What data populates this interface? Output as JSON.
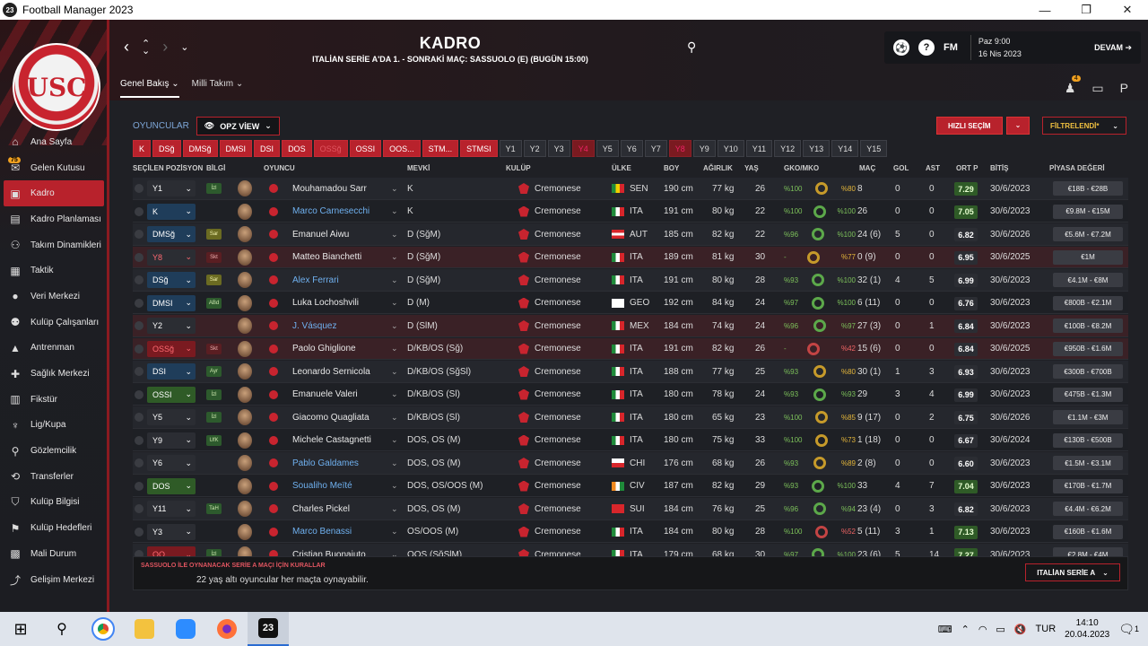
{
  "window": {
    "title": "Football Manager 2023",
    "icon": "23"
  },
  "sidebar": {
    "items": [
      {
        "label": "Ana Sayfa",
        "icon": "home-icon",
        "glyph": "⌂"
      },
      {
        "label": "Gelen Kutusu",
        "icon": "inbox-icon",
        "glyph": "✉",
        "badge": "75"
      },
      {
        "label": "Kadro",
        "icon": "squad-icon",
        "glyph": "▣",
        "active": true
      },
      {
        "label": "Kadro Planlaması",
        "icon": "planning-icon",
        "glyph": "▤"
      },
      {
        "label": "Takım Dinamikleri",
        "icon": "dynamics-icon",
        "glyph": "⚇"
      },
      {
        "label": "Taktik",
        "icon": "tactic-icon",
        "glyph": "▦"
      },
      {
        "label": "Veri Merkezi",
        "icon": "data-icon",
        "glyph": "●"
      },
      {
        "label": "Kulüp Çalışanları",
        "icon": "staff-icon",
        "glyph": "⚉"
      },
      {
        "label": "Antrenman",
        "icon": "training-icon",
        "glyph": "▲"
      },
      {
        "label": "Sağlık Merkezi",
        "icon": "medical-icon",
        "glyph": "✚"
      },
      {
        "label": "Fikstür",
        "icon": "fixture-icon",
        "glyph": "▥"
      },
      {
        "label": "Lig/Kupa",
        "icon": "trophy-icon",
        "glyph": "♆"
      },
      {
        "label": "Gözlemcilik",
        "icon": "scouting-icon",
        "glyph": "⚲"
      },
      {
        "label": "Transferler",
        "icon": "transfer-icon",
        "glyph": "⟲"
      },
      {
        "label": "Kulüp Bilgisi",
        "icon": "club-info-icon",
        "glyph": "⛉"
      },
      {
        "label": "Kulüp Hedefleri",
        "icon": "goals-icon",
        "glyph": "⚑"
      },
      {
        "label": "Mali Durum",
        "icon": "finance-icon",
        "glyph": "▩"
      },
      {
        "label": "Gelişim Merkezi",
        "icon": "development-icon",
        "glyph": "⤴"
      }
    ]
  },
  "header": {
    "title": "KADRO",
    "subtitle": "ITALİAN SERİE A'DA 1. - SONRAKİ MAÇ: SASSUOLO (E) (BUGÜN 15:00)",
    "fm": "FM",
    "time": "Paz 9:00",
    "date": "16 Nis 2023",
    "continue": "DEVAM",
    "tabs": [
      "Genel Bakış",
      "Milli Takım"
    ],
    "notif_count": "4"
  },
  "toolbar": {
    "players_label": "OYUNCULAR",
    "view_label": "OPZ VİEW",
    "quick_select": "HIZLI SEÇİM",
    "filtered": "FİLTRELENDİ*",
    "positions": [
      "K",
      "DSğ",
      "DMSğ",
      "DMSI",
      "DSI",
      "DOS",
      "OSSğ",
      "OSSI",
      "OOS...",
      "STM...",
      "STMSI",
      "Y1",
      "Y2",
      "Y3",
      "Y4",
      "Y5",
      "Y6",
      "Y7",
      "Y8",
      "Y9",
      "Y10",
      "Y11",
      "Y12",
      "Y13",
      "Y14",
      "Y15"
    ]
  },
  "table": {
    "headers": [
      "SEÇİLEN POZİSYON",
      "BİLGİ",
      "OYUNCU",
      "MEVKİ",
      "KULÜP",
      "ÜLKE",
      "BOY",
      "AĞIRLIK",
      "YAŞ",
      "GKO/MKO",
      "MAÇ",
      "GOL",
      "AST",
      "ORT P",
      "BİTİŞ",
      "PİYASA DEĞERİ"
    ],
    "rows": [
      {
        "pos": "Y1",
        "info": "İzl",
        "name": "Mouhamadou Sarr",
        "mevki": "K",
        "club": "Cremonese",
        "country": "SEN",
        "boy": "190 cm",
        "kg": "77 kg",
        "yas": "26",
        "gko": "%100",
        "mko": "%80",
        "mac": "8",
        "gol": "0",
        "ast": "0",
        "ortp": "7.29",
        "bitis": "30/6/2023",
        "piyasa": "€18B - €28B"
      },
      {
        "pos": "K",
        "info": "",
        "name": "Marco Carnesecchi",
        "mevki": "K",
        "club": "Cremonese",
        "country": "ITA",
        "boy": "191 cm",
        "kg": "80 kg",
        "yas": "22",
        "gko": "%100",
        "mko": "%100",
        "mac": "26",
        "gol": "0",
        "ast": "0",
        "ortp": "7.05",
        "bitis": "30/6/2023",
        "piyasa": "€9.8M - €15M"
      },
      {
        "pos": "DMSğ",
        "info": "Sar",
        "name": "Emanuel Aiwu",
        "mevki": "D (SğM)",
        "club": "Cremonese",
        "country": "AUT",
        "boy": "185 cm",
        "kg": "82 kg",
        "yas": "22",
        "gko": "%96",
        "mko": "%100",
        "mac": "24 (6)",
        "gol": "5",
        "ast": "0",
        "ortp": "6.82",
        "bitis": "30/6/2026",
        "piyasa": "€5.6M - €7.2M"
      },
      {
        "pos": "Y8",
        "info": "Skt",
        "name": "Matteo Bianchetti",
        "mevki": "D (SğM)",
        "club": "Cremonese",
        "country": "ITA",
        "boy": "189 cm",
        "kg": "81 kg",
        "yas": "30",
        "gko": "-",
        "mko": "%77",
        "mac": "0 (9)",
        "gol": "0",
        "ast": "0",
        "ortp": "6.95",
        "bitis": "30/6/2025",
        "piyasa": "€1M"
      },
      {
        "pos": "DSğ",
        "info": "Sar",
        "name": "Alex Ferrari",
        "mevki": "D (SğM)",
        "club": "Cremonese",
        "country": "ITA",
        "boy": "191 cm",
        "kg": "80 kg",
        "yas": "28",
        "gko": "%93",
        "mko": "%100",
        "mac": "32 (1)",
        "gol": "4",
        "ast": "5",
        "ortp": "6.99",
        "bitis": "30/6/2023",
        "piyasa": "€4.1M - €8M"
      },
      {
        "pos": "DMSI",
        "info": "ABd",
        "name": "Luka Lochoshvili",
        "mevki": "D (M)",
        "club": "Cremonese",
        "country": "GEO",
        "boy": "192 cm",
        "kg": "84 kg",
        "yas": "24",
        "gko": "%97",
        "mko": "%100",
        "mac": "6 (11)",
        "gol": "0",
        "ast": "0",
        "ortp": "6.76",
        "bitis": "30/6/2023",
        "piyasa": "€800B - €2.1M"
      },
      {
        "pos": "Y2",
        "info": "",
        "name": "J. Vásquez",
        "mevki": "D (SlM)",
        "club": "Cremonese",
        "country": "MEX",
        "boy": "184 cm",
        "kg": "74 kg",
        "yas": "24",
        "gko": "%96",
        "mko": "%97",
        "mac": "27 (3)",
        "gol": "0",
        "ast": "1",
        "ortp": "6.84",
        "bitis": "30/6/2023",
        "piyasa": "€100B - €8.2M"
      },
      {
        "pos": "OSSğ",
        "info": "Skt",
        "name": "Paolo Ghiglione",
        "mevki": "D/KB/OS (Sğ)",
        "club": "Cremonese",
        "country": "ITA",
        "boy": "191 cm",
        "kg": "82 kg",
        "yas": "26",
        "gko": "-",
        "mko": "%42",
        "mac": "15 (6)",
        "gol": "0",
        "ast": "0",
        "ortp": "6.84",
        "bitis": "30/6/2025",
        "piyasa": "€950B - €1.6M"
      },
      {
        "pos": "DSI",
        "info": "Ayr",
        "name": "Leonardo Sernicola",
        "mevki": "D/KB/OS (SğSl)",
        "club": "Cremonese",
        "country": "ITA",
        "boy": "188 cm",
        "kg": "77 kg",
        "yas": "25",
        "gko": "%93",
        "mko": "%80",
        "mac": "30 (1)",
        "gol": "1",
        "ast": "3",
        "ortp": "6.93",
        "bitis": "30/6/2023",
        "piyasa": "€300B - €700B"
      },
      {
        "pos": "OSSI",
        "info": "İzl",
        "name": "Emanuele Valeri",
        "mevki": "D/KB/OS (Sl)",
        "club": "Cremonese",
        "country": "ITA",
        "boy": "180 cm",
        "kg": "78 kg",
        "yas": "24",
        "gko": "%93",
        "mko": "%93",
        "mac": "29",
        "gol": "3",
        "ast": "4",
        "ortp": "6.99",
        "bitis": "30/6/2023",
        "piyasa": "€475B - €1.3M"
      },
      {
        "pos": "Y5",
        "info": "İzl",
        "name": "Giacomo Quagliata",
        "mevki": "D/KB/OS (Sl)",
        "club": "Cremonese",
        "country": "ITA",
        "boy": "180 cm",
        "kg": "65 kg",
        "yas": "23",
        "gko": "%100",
        "mko": "%85",
        "mac": "9 (17)",
        "gol": "0",
        "ast": "2",
        "ortp": "6.75",
        "bitis": "30/6/2026",
        "piyasa": "€1.1M - €3M"
      },
      {
        "pos": "Y9",
        "info": "UfK",
        "name": "Michele Castagnetti",
        "mevki": "DOS, OS (M)",
        "club": "Cremonese",
        "country": "ITA",
        "boy": "180 cm",
        "kg": "75 kg",
        "yas": "33",
        "gko": "%100",
        "mko": "%73",
        "mac": "1 (18)",
        "gol": "0",
        "ast": "0",
        "ortp": "6.67",
        "bitis": "30/6/2024",
        "piyasa": "€130B - €500B"
      },
      {
        "pos": "Y6",
        "info": "",
        "name": "Pablo Galdames",
        "mevki": "DOS, OS (M)",
        "club": "Cremonese",
        "country": "CHI",
        "boy": "176 cm",
        "kg": "68 kg",
        "yas": "26",
        "gko": "%93",
        "mko": "%89",
        "mac": "2 (8)",
        "gol": "0",
        "ast": "0",
        "ortp": "6.60",
        "bitis": "30/6/2023",
        "piyasa": "€1.5M - €3.1M"
      },
      {
        "pos": "DOS",
        "info": "",
        "name": "Soualiho Meïté",
        "mevki": "DOS, OS/OOS (M)",
        "club": "Cremonese",
        "country": "CIV",
        "boy": "187 cm",
        "kg": "82 kg",
        "yas": "29",
        "gko": "%93",
        "mko": "%100",
        "mac": "33",
        "gol": "4",
        "ast": "7",
        "ortp": "7.04",
        "bitis": "30/6/2023",
        "piyasa": "€170B - €1.7M"
      },
      {
        "pos": "Y11",
        "info": "TaH",
        "name": "Charles Pickel",
        "mevki": "DOS, OS (M)",
        "club": "Cremonese",
        "country": "SUI",
        "boy": "184 cm",
        "kg": "76 kg",
        "yas": "25",
        "gko": "%96",
        "mko": "%94",
        "mac": "23 (4)",
        "gol": "0",
        "ast": "3",
        "ortp": "6.82",
        "bitis": "30/6/2023",
        "piyasa": "€4.4M - €6.2M"
      },
      {
        "pos": "Y3",
        "info": "",
        "name": "Marco Benassi",
        "mevki": "OS/OOS (M)",
        "club": "Cremonese",
        "country": "ITA",
        "boy": "184 cm",
        "kg": "80 kg",
        "yas": "28",
        "gko": "%100",
        "mko": "%52",
        "mac": "5 (11)",
        "gol": "3",
        "ast": "1",
        "ortp": "7.13",
        "bitis": "30/6/2023",
        "piyasa": "€160B - €1.6M"
      },
      {
        "pos": "OO",
        "info": "İzl",
        "name": "Cristian Buonaiuto",
        "mevki": "OOS (SğSlM)",
        "club": "Cremonese",
        "country": "ITA",
        "boy": "179 cm",
        "kg": "68 kg",
        "yas": "30",
        "gko": "%97",
        "mko": "%100",
        "mac": "23 (6)",
        "gol": "5",
        "ast": "14",
        "ortp": "7.27",
        "bitis": "30/6/2023",
        "piyasa": "€2.8M - €4M"
      }
    ]
  },
  "footer": {
    "rules_title": "SASSUOLO İLE OYNANACAK SERİE A MAÇI İÇİN KURALLAR",
    "rule": "22 yaş altı oyuncular her maçta oynayabilir.",
    "league": "ITALİAN SERİE A"
  },
  "taskbar": {
    "lang": "TUR",
    "time": "14:10",
    "date": "20.04.2023",
    "notif": "1"
  }
}
